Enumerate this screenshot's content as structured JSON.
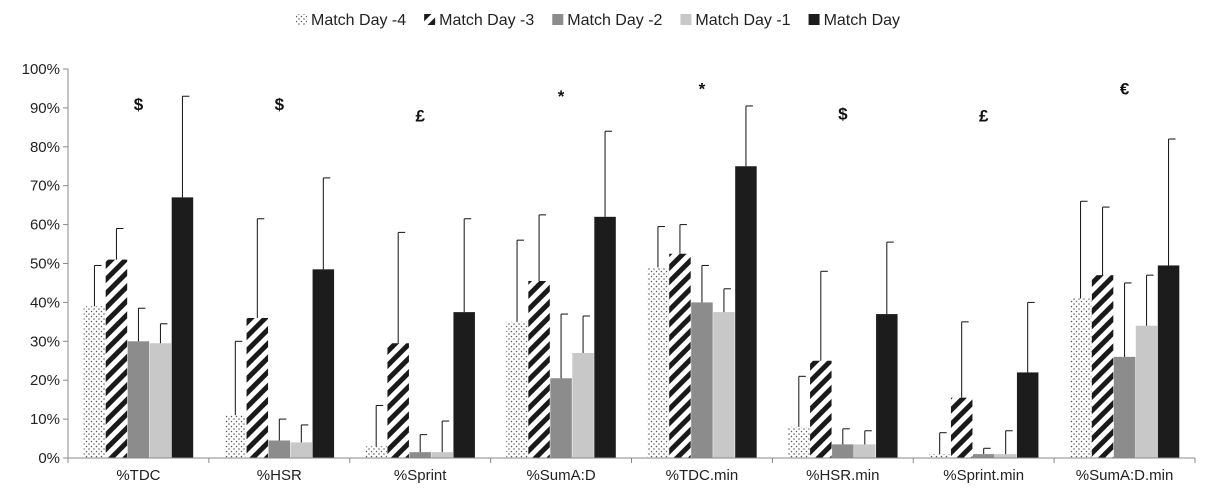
{
  "chart_data": {
    "type": "bar",
    "title": "",
    "xlabel": "",
    "ylabel": "",
    "ylim": [
      0,
      100
    ],
    "yticks": [
      0,
      10,
      20,
      30,
      40,
      50,
      60,
      70,
      80,
      90,
      100
    ],
    "ytick_labels": [
      "0%",
      "10%",
      "20%",
      "30%",
      "40%",
      "50%",
      "60%",
      "70%",
      "80%",
      "90%",
      "100%"
    ],
    "grid": false,
    "legend_position": "top",
    "categories": [
      "%TDC",
      "%HSR",
      "%Sprint",
      "%SumA:D",
      "%TDC.min",
      "%HSR.min",
      "%Sprint.min",
      "%SumA:D.min"
    ],
    "series": [
      {
        "name": "Match Day -4",
        "pattern": "dots",
        "color": "#ffffff",
        "values": [
          39,
          11,
          3,
          35,
          49,
          8,
          1,
          41
        ],
        "error_top": [
          49.5,
          30,
          13.5,
          56,
          59.5,
          21,
          6.5,
          66
        ]
      },
      {
        "name": "Match Day -3",
        "pattern": "diagonal-stripes",
        "color": "#1a1a1a",
        "values": [
          51,
          36,
          29.5,
          45.5,
          52.5,
          25,
          15.5,
          47
        ],
        "error_top": [
          59,
          61.5,
          58,
          62.5,
          60,
          48,
          35,
          64.5
        ]
      },
      {
        "name": "Match Day -2",
        "pattern": "solid",
        "color": "#8c8c8c",
        "values": [
          30,
          4.5,
          1.5,
          20.5,
          40,
          3.5,
          1,
          26
        ],
        "error_top": [
          38.5,
          10,
          6,
          37,
          49.5,
          7.5,
          2.5,
          45
        ]
      },
      {
        "name": "Match Day -1",
        "pattern": "solid",
        "color": "#c8c8c8",
        "values": [
          29.5,
          4,
          1.5,
          27,
          37.5,
          3.5,
          1,
          34
        ],
        "error_top": [
          34.5,
          8.5,
          9.5,
          36.5,
          43.5,
          7,
          7,
          47
        ]
      },
      {
        "name": "Match Day",
        "pattern": "solid",
        "color": "#1c1c1c",
        "values": [
          67,
          48.5,
          37.5,
          62,
          75,
          37,
          22,
          49.5
        ],
        "error_top": [
          93,
          72,
          61.5,
          84,
          90.5,
          55.5,
          40,
          82
        ]
      }
    ],
    "annotations": [
      {
        "category": "%TDC",
        "text": "$",
        "y": 91
      },
      {
        "category": "%HSR",
        "text": "$",
        "y": 91
      },
      {
        "category": "%Sprint",
        "text": "£",
        "y": 88
      },
      {
        "category": "%SumA:D",
        "text": "*",
        "y": 93
      },
      {
        "category": "%TDC.min",
        "text": "*",
        "y": 95
      },
      {
        "category": "%HSR.min",
        "text": "$",
        "y": 88.5
      },
      {
        "category": "%Sprint.min",
        "text": "£",
        "y": 88
      },
      {
        "category": "%SumA:D.min",
        "text": "€",
        "y": 95
      }
    ]
  }
}
